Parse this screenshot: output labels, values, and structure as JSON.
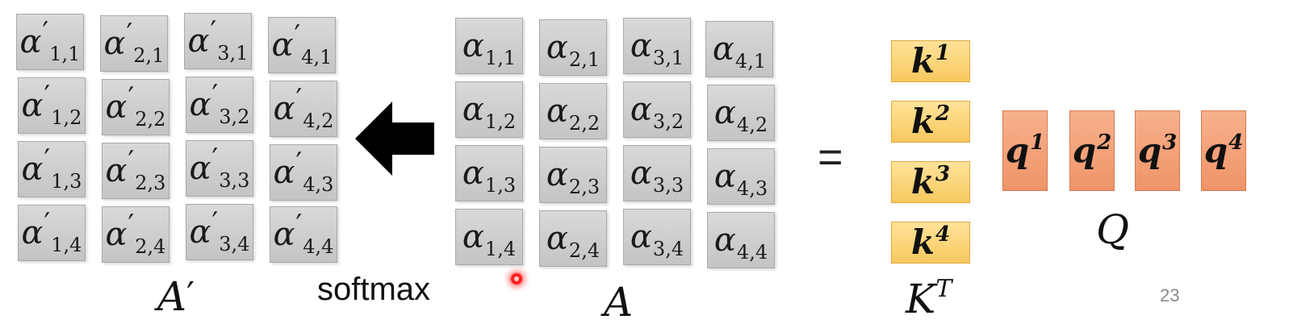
{
  "A_prime": {
    "label": "A",
    "cells": [
      {
        "sym": "α",
        "sub": "1,1"
      },
      {
        "sym": "α",
        "sub": "2,1"
      },
      {
        "sym": "α",
        "sub": "3,1"
      },
      {
        "sym": "α",
        "sub": "4,1"
      },
      {
        "sym": "α",
        "sub": "1,2"
      },
      {
        "sym": "α",
        "sub": "2,2"
      },
      {
        "sym": "α",
        "sub": "3,2"
      },
      {
        "sym": "α",
        "sub": "4,2"
      },
      {
        "sym": "α",
        "sub": "1,3"
      },
      {
        "sym": "α",
        "sub": "2,3"
      },
      {
        "sym": "α",
        "sub": "3,3"
      },
      {
        "sym": "α",
        "sub": "4,3"
      },
      {
        "sym": "α",
        "sub": "1,4"
      },
      {
        "sym": "α",
        "sub": "2,4"
      },
      {
        "sym": "α",
        "sub": "3,4"
      },
      {
        "sym": "α",
        "sub": "4,4"
      }
    ]
  },
  "A": {
    "label": "A",
    "cells": [
      {
        "sym": "α",
        "sub": "1,1"
      },
      {
        "sym": "α",
        "sub": "2,1"
      },
      {
        "sym": "α",
        "sub": "3,1"
      },
      {
        "sym": "α",
        "sub": "4,1"
      },
      {
        "sym": "α",
        "sub": "1,2"
      },
      {
        "sym": "α",
        "sub": "2,2"
      },
      {
        "sym": "α",
        "sub": "3,2"
      },
      {
        "sym": "α",
        "sub": "4,2"
      },
      {
        "sym": "α",
        "sub": "1,3"
      },
      {
        "sym": "α",
        "sub": "2,3"
      },
      {
        "sym": "α",
        "sub": "3,3"
      },
      {
        "sym": "α",
        "sub": "4,3"
      },
      {
        "sym": "α",
        "sub": "1,4"
      },
      {
        "sym": "α",
        "sub": "2,4"
      },
      {
        "sym": "α",
        "sub": "3,4"
      },
      {
        "sym": "α",
        "sub": "4,4"
      }
    ]
  },
  "softmax_label": "softmax",
  "equals": "=",
  "K": {
    "label": "K",
    "label_sup": "T",
    "keys": [
      {
        "sym": "k",
        "sup": "1"
      },
      {
        "sym": "k",
        "sup": "2"
      },
      {
        "sym": "k",
        "sup": "3"
      },
      {
        "sym": "k",
        "sup": "4"
      }
    ]
  },
  "Q": {
    "label": "Q",
    "queries": [
      {
        "sym": "q",
        "sup": "1"
      },
      {
        "sym": "q",
        "sup": "2"
      },
      {
        "sym": "q",
        "sup": "3"
      },
      {
        "sym": "q",
        "sup": "4"
      }
    ]
  },
  "page_number": "23",
  "colors": {
    "key_fill": "#f7c85e",
    "query_fill": "#ef9468",
    "cell_fill": "#cfcfcf",
    "pointer": "#ff1e1e"
  }
}
